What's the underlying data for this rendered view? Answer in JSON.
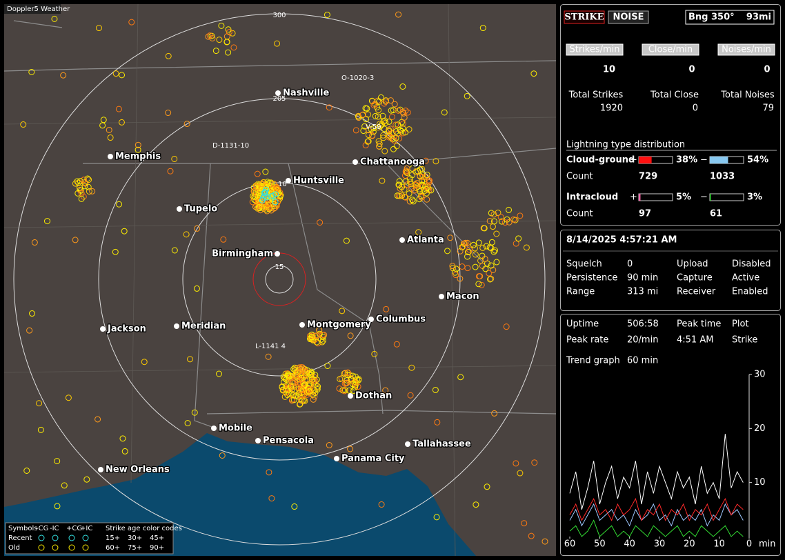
{
  "window_title": "Doppler5 Weather",
  "map": {
    "cities": [
      "Nashville",
      "Memphis",
      "Huntsville",
      "Chattanooga",
      "Tupelo",
      "Birmingham",
      "Atlanta",
      "Macon",
      "Jackson",
      "Meridian",
      "Montgomery",
      "Columbus",
      "Dothan",
      "Mobile",
      "Pensacola",
      "Tallahassee",
      "Panama City",
      "New Orleans"
    ],
    "range_labels": [
      "300",
      "205",
      "15"
    ],
    "station_tags": [
      "O-1020-3",
      "V-59",
      "D-1131-10",
      "L-1141 4",
      "10"
    ]
  },
  "legend": {
    "title": "Symbols",
    "types": [
      "-CG",
      "-IC",
      "+CG",
      "+IC"
    ],
    "age_title": "Strike age color codes",
    "rows": [
      "Recent",
      "Old"
    ],
    "recent_ages": [
      "15+",
      "30+",
      "45+"
    ],
    "old_ages": [
      "60+",
      "75+",
      "90+"
    ]
  },
  "status": {
    "strike_button": "STRIKE",
    "noise_button": "NOISE",
    "bearing": "Bng 350°",
    "distance": "93mi"
  },
  "rates": {
    "headers": [
      "Strikes/min",
      "Close/min",
      "Noises/min"
    ],
    "values": [
      10,
      0,
      0
    ],
    "total_labels": [
      "Total Strikes",
      "Total Close",
      "Total Noises"
    ],
    "totals": [
      1920,
      0,
      79
    ]
  },
  "distribution": {
    "title": "Lightning type distribution",
    "count_label": "Count",
    "plus": "+",
    "minus": "−",
    "rows": [
      {
        "name": "Cloud-ground",
        "positive": {
          "value": 38,
          "label": "38%"
        },
        "negative": {
          "value": 54,
          "label": "54%"
        },
        "counts": [
          729,
          1033
        ]
      },
      {
        "name": "Intracloud",
        "positive": {
          "value": 5,
          "label": "5%"
        },
        "negative": {
          "value": 3,
          "label": "3%"
        },
        "counts": [
          97,
          61
        ]
      }
    ]
  },
  "clock": "8/14/2025 4:57:21 AM",
  "settings": [
    [
      "Squelch",
      "0",
      "Upload",
      "Disabled"
    ],
    [
      "Persistence",
      "90 min",
      "Capture",
      "Active"
    ],
    [
      "Range",
      "313 mi",
      "Receiver",
      "Enabled"
    ]
  ],
  "stats": [
    [
      "Uptime",
      "506:58",
      "Peak time",
      "Plot"
    ],
    [
      "Peak rate",
      "20/min",
      "4:51 AM",
      "Strike"
    ],
    [
      "Trend graph",
      "60 min"
    ]
  ],
  "chart_data": {
    "type": "line",
    "x_unit": "min",
    "x": [
      60,
      58,
      56,
      54,
      52,
      50,
      48,
      46,
      44,
      42,
      40,
      38,
      36,
      34,
      32,
      30,
      28,
      26,
      24,
      22,
      20,
      18,
      16,
      14,
      12,
      10,
      8,
      6,
      4,
      2
    ],
    "xlim": [
      60,
      0
    ],
    "xticks": [
      60,
      50,
      40,
      30,
      20,
      10,
      0
    ],
    "ylim": [
      0,
      30
    ],
    "yticks": [
      10,
      20,
      30
    ],
    "series": [
      {
        "color": "#ffffff",
        "values": [
          8,
          12,
          5,
          9,
          14,
          6,
          10,
          13,
          7,
          11,
          9,
          14,
          6,
          12,
          8,
          13,
          10,
          7,
          12,
          9,
          11,
          6,
          13,
          8,
          10,
          7,
          19,
          9,
          12,
          10
        ]
      },
      {
        "color": "#9fc8ff",
        "values": [
          3,
          5,
          2,
          4,
          6,
          3,
          4,
          5,
          3,
          4,
          2,
          5,
          3,
          4,
          6,
          3,
          4,
          2,
          5,
          3,
          4,
          3,
          5,
          2,
          4,
          3,
          6,
          4,
          5,
          3
        ]
      },
      {
        "color": "#ff2a2a",
        "values": [
          4,
          6,
          3,
          5,
          7,
          4,
          5,
          3,
          6,
          4,
          5,
          7,
          3,
          5,
          4,
          6,
          3,
          5,
          4,
          6,
          3,
          5,
          4,
          6,
          3,
          5,
          7,
          4,
          6,
          5
        ]
      },
      {
        "color": "#33dd33",
        "values": [
          1,
          2,
          0,
          1,
          3,
          0,
          1,
          2,
          0,
          1,
          0,
          2,
          1,
          0,
          2,
          1,
          0,
          1,
          2,
          0,
          1,
          0,
          2,
          1,
          0,
          1,
          2,
          0,
          1,
          0
        ]
      }
    ]
  }
}
